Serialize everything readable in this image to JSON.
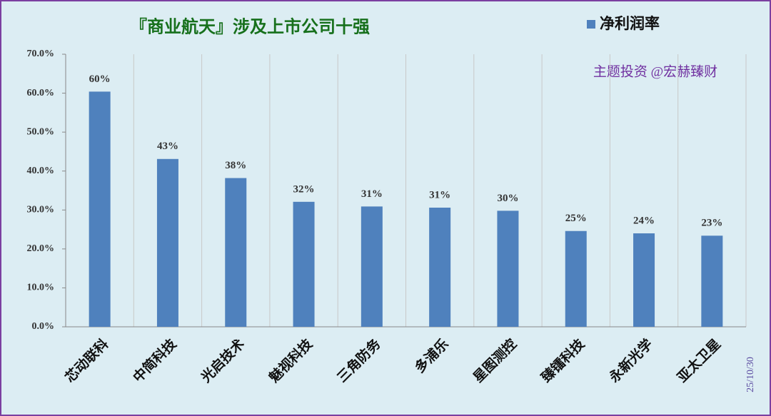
{
  "chart_data": {
    "type": "bar",
    "title": "『商业航天』涉及上市公司十强",
    "annotation": "主题投资 @宏赫臻财",
    "date": "25/10/30",
    "categories": [
      "芯动联科",
      "中简科技",
      "光启技术",
      "魅视科技",
      "三角防务",
      "多浦乐",
      "星图测控",
      "臻镭科技",
      "永新光学",
      "亚太卫星"
    ],
    "series": [
      {
        "name": "净利润率",
        "color": "#4f81bd",
        "values": [
          60.4,
          43.1,
          38.2,
          32.1,
          30.9,
          30.6,
          29.8,
          24.6,
          24.0,
          23.4
        ],
        "value_labels": [
          "60%",
          "43%",
          "38%",
          "32%",
          "31%",
          "31%",
          "30%",
          "25%",
          "24%",
          "23%"
        ]
      }
    ],
    "ylim": [
      0,
      70
    ],
    "yticks": [
      {
        "value": 0,
        "label": "0.0%"
      },
      {
        "value": 10,
        "label": "10.0%"
      },
      {
        "value": 20,
        "label": "20.0%"
      },
      {
        "value": 30,
        "label": "30.0%"
      },
      {
        "value": 40,
        "label": "40.0%"
      },
      {
        "value": 50,
        "label": "50.0%"
      },
      {
        "value": 60,
        "label": "60.0%"
      },
      {
        "value": 70,
        "label": "70.0%"
      }
    ],
    "legend": "top-right"
  }
}
